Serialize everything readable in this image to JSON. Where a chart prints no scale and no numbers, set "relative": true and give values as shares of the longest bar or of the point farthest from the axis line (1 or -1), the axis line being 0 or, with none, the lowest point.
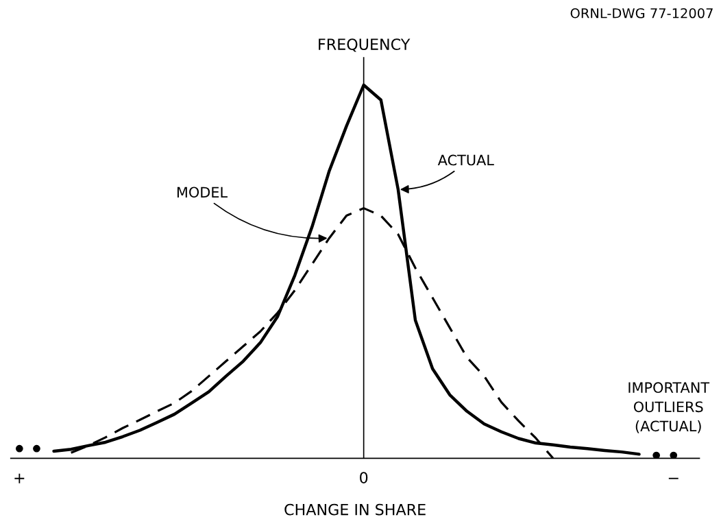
{
  "chart_data": {
    "type": "line",
    "relative": true,
    "xlabel": "CHANGE IN SHARE",
    "ylabel": "FREQUENCY",
    "grid": false,
    "ref_lines": [
      {
        "axis": "x",
        "value": "0",
        "color": "#000000"
      }
    ],
    "categories": [
      "+",
      null,
      null,
      null,
      null,
      null,
      null,
      null,
      null,
      null,
      null,
      null,
      null,
      null,
      null,
      null,
      null,
      null,
      null,
      null,
      "0",
      null,
      null,
      null,
      null,
      null,
      null,
      null,
      null,
      null,
      null,
      null,
      null,
      null,
      null,
      null,
      null,
      null,
      "−",
      null,
      null
    ],
    "series": [
      {
        "color": "#000000",
        "line_style": "solid",
        "marker": "none",
        "values": [
          null,
          null,
          0.019,
          0.024,
          0.034,
          0.043,
          0.058,
          0.075,
          0.096,
          0.118,
          0.148,
          0.178,
          0.22,
          0.26,
          0.31,
          0.38,
          0.49,
          0.62,
          0.77,
          0.89,
          1,
          0.96,
          0.72,
          0.37,
          0.24,
          0.17,
          0.126,
          0.092,
          0.071,
          0.053,
          0.041,
          0.036,
          0.03,
          0.026,
          0.021,
          0.017,
          0.011,
          null,
          null,
          null,
          null
        ]
      },
      {
        "color": "#000000",
        "line_style": "dashed",
        "marker": "none",
        "values": [
          null,
          null,
          null,
          0.015,
          0.034,
          0.056,
          0.081,
          0.103,
          0.126,
          0.148,
          0.18,
          0.22,
          0.26,
          0.3,
          0.34,
          0.39,
          0.45,
          0.52,
          0.59,
          0.65,
          0.67,
          0.65,
          0.6,
          0.51,
          0.43,
          0.35,
          0.27,
          0.22,
          0.15,
          0.1,
          0.054,
          0,
          null,
          null,
          null,
          null,
          null,
          null,
          null,
          null,
          null
        ]
      },
      {
        "type": "scatter",
        "color": "#000000",
        "marker": "circle",
        "values": [
          0.026,
          0.026,
          null,
          null,
          null,
          null,
          null,
          null,
          null,
          null,
          null,
          null,
          null,
          null,
          null,
          null,
          null,
          null,
          null,
          null,
          null,
          null,
          null,
          null,
          null,
          null,
          null,
          null,
          null,
          null,
          null,
          null,
          null,
          null,
          null,
          null,
          null,
          0.008,
          0.008,
          null,
          null
        ]
      }
    ],
    "annotations": [
      "ACTUAL",
      "MODEL",
      "IMPORTANT\nOUTLIERS\n(ACTUAL)",
      "ORNL-DWG 77-12007"
    ]
  }
}
